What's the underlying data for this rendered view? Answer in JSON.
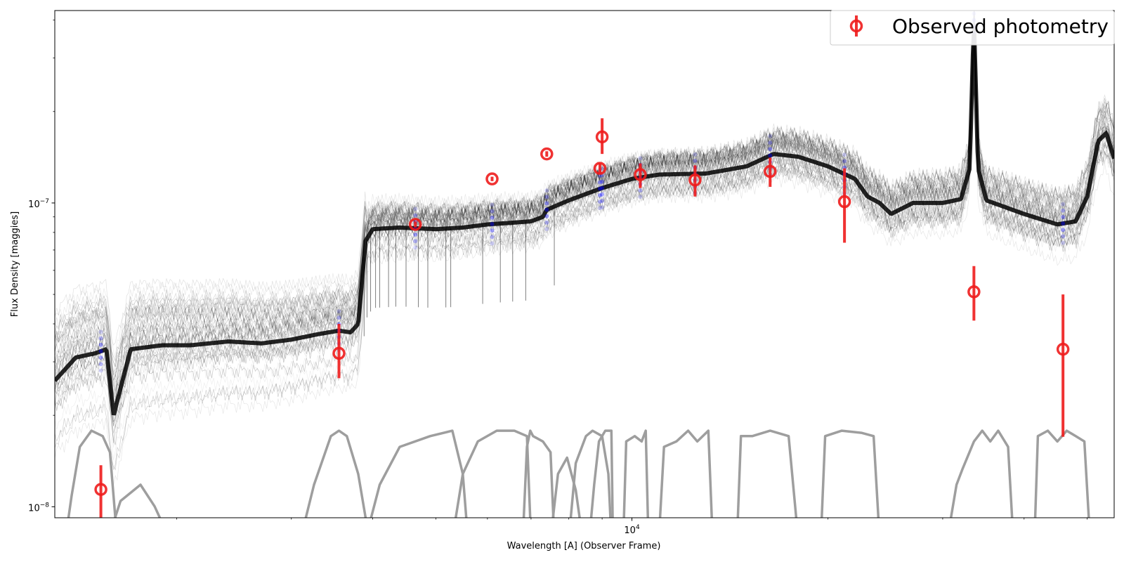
{
  "chart_data": {
    "type": "scatter",
    "xlabel": "Wavelength [A] (Observer Frame)",
    "ylabel": "Flux Density [maggies]",
    "xscale": "log",
    "yscale": "log",
    "xlim": [
      1300,
      55000
    ],
    "ylim": [
      9.2e-09,
      4.3e-07
    ],
    "x_ticks": [
      {
        "value": 10000,
        "label": "10",
        "exp": "4"
      }
    ],
    "y_ticks": [
      {
        "value": 1e-08,
        "label": "10",
        "exp": "−8"
      },
      {
        "value": 1e-07,
        "label": "10",
        "exp": "−7"
      }
    ],
    "legend": {
      "position": "top-right",
      "entries": [
        "Observed photometry"
      ]
    },
    "colors": {
      "observed": "#ee1c1c",
      "model": "#000000",
      "model_photometry": "#0000ff",
      "filters": "#9e9e9e"
    },
    "series": [
      {
        "name": "Observed photometry",
        "points": [
          {
            "x": 1530,
            "y": 1.14e-08,
            "ylo": 8.5e-09,
            "yhi": 1.37e-08
          },
          {
            "x": 3550,
            "y": 3.2e-08,
            "ylo": 2.65e-08,
            "yhi": 4e-08
          },
          {
            "x": 4650,
            "y": 8.5e-08,
            "ylo": 8.3e-08,
            "yhi": 8.7e-08
          },
          {
            "x": 6100,
            "y": 1.2e-07,
            "ylo": 1.18e-07,
            "yhi": 1.22e-07
          },
          {
            "x": 7400,
            "y": 1.45e-07,
            "ylo": 1.42e-07,
            "yhi": 1.48e-07
          },
          {
            "x": 8930,
            "y": 1.3e-07,
            "ylo": 1.25e-07,
            "yhi": 1.35e-07
          },
          {
            "x": 9000,
            "y": 1.65e-07,
            "ylo": 1.45e-07,
            "yhi": 1.9e-07
          },
          {
            "x": 10300,
            "y": 1.24e-07,
            "ylo": 1.12e-07,
            "yhi": 1.35e-07
          },
          {
            "x": 12500,
            "y": 1.19e-07,
            "ylo": 1.05e-07,
            "yhi": 1.33e-07
          },
          {
            "x": 16300,
            "y": 1.27e-07,
            "ylo": 1.13e-07,
            "yhi": 1.41e-07
          },
          {
            "x": 21200,
            "y": 1.01e-07,
            "ylo": 7.4e-08,
            "yhi": 1.3e-07
          },
          {
            "x": 33500,
            "y": 5.1e-08,
            "ylo": 4.1e-08,
            "yhi": 6.2e-08
          },
          {
            "x": 45900,
            "y": 3.3e-08,
            "ylo": 1.7e-08,
            "yhi": 5e-08
          }
        ]
      }
    ],
    "model_median_sed": [
      [
        1300,
        2.6e-08
      ],
      [
        1400,
        3.1e-08
      ],
      [
        1500,
        3.2e-08
      ],
      [
        1560,
        3.3e-08
      ],
      [
        1600,
        2e-08
      ],
      [
        1700,
        3.3e-08
      ],
      [
        1900,
        3.4e-08
      ],
      [
        2100,
        3.4e-08
      ],
      [
        2400,
        3.5e-08
      ],
      [
        2700,
        3.45e-08
      ],
      [
        3000,
        3.55e-08
      ],
      [
        3300,
        3.7e-08
      ],
      [
        3550,
        3.8e-08
      ],
      [
        3700,
        3.75e-08
      ],
      [
        3800,
        4e-08
      ],
      [
        3900,
        7.5e-08
      ],
      [
        4000,
        8.2e-08
      ],
      [
        4400,
        8.3e-08
      ],
      [
        5000,
        8.2e-08
      ],
      [
        5500,
        8.3e-08
      ],
      [
        6000,
        8.5e-08
      ],
      [
        6500,
        8.6e-08
      ],
      [
        7000,
        8.7e-08
      ],
      [
        7300,
        9e-08
      ],
      [
        7400,
        9.5e-08
      ],
      [
        8000,
        1.02e-07
      ],
      [
        9000,
        1.12e-07
      ],
      [
        10000,
        1.2e-07
      ],
      [
        11000,
        1.24e-07
      ],
      [
        13000,
        1.25e-07
      ],
      [
        15000,
        1.32e-07
      ],
      [
        16500,
        1.45e-07
      ],
      [
        18000,
        1.42e-07
      ],
      [
        20000,
        1.32e-07
      ],
      [
        22000,
        1.2e-07
      ],
      [
        23000,
        1.05e-07
      ],
      [
        24000,
        1e-07
      ],
      [
        25000,
        9.2e-08
      ],
      [
        27000,
        1e-07
      ],
      [
        30000,
        1e-07
      ],
      [
        32000,
        1.03e-07
      ],
      [
        33000,
        1.3e-07
      ],
      [
        33500,
        4e-07
      ],
      [
        34000,
        1.3e-07
      ],
      [
        35000,
        1.02e-07
      ],
      [
        40000,
        9.2e-08
      ],
      [
        45000,
        8.5e-08
      ],
      [
        48000,
        8.7e-08
      ],
      [
        50000,
        1.05e-07
      ],
      [
        52000,
        1.6e-07
      ],
      [
        53500,
        1.7e-07
      ],
      [
        55000,
        1.4e-07
      ]
    ],
    "filter_curves": [
      [
        [
          1350,
          0
        ],
        [
          1380,
          0.4
        ],
        [
          1420,
          0.85
        ],
        [
          1480,
          1.0
        ],
        [
          1540,
          0.95
        ],
        [
          1580,
          0.8
        ],
        [
          1610,
          0.2
        ],
        [
          1640,
          0
        ]
      ],
      [
        [
          1570,
          0
        ],
        [
          1640,
          0.35
        ],
        [
          1760,
          0.5
        ],
        [
          1850,
          0.3
        ],
        [
          1950,
          0
        ]
      ],
      [
        [
          3100,
          0
        ],
        [
          3250,
          0.5
        ],
        [
          3450,
          0.95
        ],
        [
          3550,
          1.0
        ],
        [
          3650,
          0.95
        ],
        [
          3800,
          0.6
        ],
        [
          3950,
          0
        ]
      ],
      [
        [
          3900,
          0
        ],
        [
          4100,
          0.5
        ],
        [
          4400,
          0.85
        ],
        [
          4900,
          0.95
        ],
        [
          5300,
          1.0
        ],
        [
          5500,
          0.6
        ],
        [
          5600,
          0
        ]
      ],
      [
        [
          5300,
          0
        ],
        [
          5500,
          0.6
        ],
        [
          5800,
          0.9
        ],
        [
          6200,
          1.0
        ],
        [
          6600,
          1.0
        ],
        [
          6900,
          0.95
        ],
        [
          7000,
          0
        ]
      ],
      [
        [
          6800,
          0
        ],
        [
          6900,
          0.85
        ],
        [
          6980,
          1.0
        ],
        [
          7050,
          0.95
        ],
        [
          7300,
          0.9
        ],
        [
          7500,
          0.8
        ],
        [
          7600,
          0
        ]
      ],
      [
        [
          7500,
          0
        ],
        [
          7700,
          0.6
        ],
        [
          7950,
          0.75
        ],
        [
          8200,
          0.45
        ],
        [
          8400,
          0
        ]
      ],
      [
        [
          8000,
          0
        ],
        [
          8200,
          0.7
        ],
        [
          8500,
          0.95
        ],
        [
          8700,
          1.0
        ],
        [
          9000,
          0.95
        ],
        [
          9200,
          0.6
        ],
        [
          9300,
          0
        ]
      ],
      [
        [
          8600,
          0
        ],
        [
          8750,
          0.5
        ],
        [
          8900,
          0.9
        ],
        [
          9100,
          1.0
        ],
        [
          9300,
          1.0
        ],
        [
          9350,
          0
        ]
      ],
      [
        [
          9700,
          0
        ],
        [
          9800,
          0.9
        ],
        [
          10100,
          0.95
        ],
        [
          10350,
          0.9
        ],
        [
          10500,
          1.0
        ],
        [
          10600,
          0
        ]
      ],
      [
        [
          11000,
          0
        ],
        [
          11200,
          0.85
        ],
        [
          11700,
          0.9
        ],
        [
          12200,
          1.0
        ],
        [
          12600,
          0.9
        ],
        [
          13100,
          1.0
        ],
        [
          13300,
          0
        ]
      ],
      [
        [
          14500,
          0
        ],
        [
          14700,
          0.95
        ],
        [
          15300,
          0.95
        ],
        [
          16300,
          1.0
        ],
        [
          17400,
          0.95
        ],
        [
          18000,
          0
        ]
      ],
      [
        [
          19500,
          0
        ],
        [
          19800,
          0.95
        ],
        [
          21000,
          1.0
        ],
        [
          22500,
          0.98
        ],
        [
          23500,
          0.95
        ],
        [
          24000,
          0
        ]
      ],
      [
        [
          28500,
          0
        ],
        [
          28800,
          0.06
        ],
        [
          29200,
          0
        ]
      ],
      [
        [
          30500,
          0
        ],
        [
          31500,
          0.5
        ],
        [
          32200,
          0.65
        ],
        [
          33500,
          0.9
        ],
        [
          34500,
          1.0
        ],
        [
          35500,
          0.9
        ],
        [
          36500,
          1.0
        ],
        [
          37800,
          0.85
        ],
        [
          38500,
          0
        ]
      ],
      [
        [
          41500,
          0
        ],
        [
          42000,
          0.95
        ],
        [
          43500,
          1.0
        ],
        [
          45000,
          0.9
        ],
        [
          46500,
          1.0
        ],
        [
          48000,
          0.95
        ],
        [
          49500,
          0.9
        ],
        [
          50500,
          0
        ]
      ]
    ]
  }
}
